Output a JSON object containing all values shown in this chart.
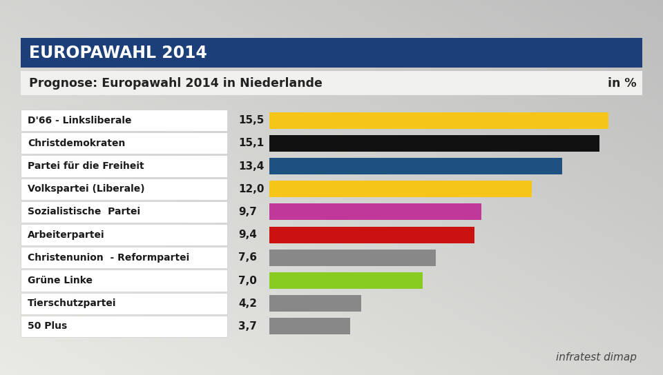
{
  "title_header": "EUROPAWAHL 2014",
  "title_header_bg": "#1c3f7a",
  "title_header_color": "#ffffff",
  "subtitle": "Prognose: Europawahl 2014 in Niederlande",
  "subtitle_right": "in %",
  "subtitle_color": "#222222",
  "source_text": "infratest dimap",
  "categories": [
    "D'66 - Linksliberale",
    "Christdemokraten",
    "Partei für die Freiheit",
    "Volkspartei (Liberale)",
    "Sozialistische  Partei",
    "Arbeiterpartei",
    "Christenunion  - Reformpartei",
    "Grüne Linke",
    "Tierschutzpartei",
    "50 Plus"
  ],
  "values": [
    15.5,
    15.1,
    13.4,
    12.0,
    9.7,
    9.4,
    7.6,
    7.0,
    4.2,
    3.7
  ],
  "value_labels": [
    "15,5",
    "15,1",
    "13,4",
    "12,0",
    "9,7",
    "9,4",
    "7,6",
    "7,0",
    "4,2",
    "3,7"
  ],
  "bar_colors": [
    "#f5c518",
    "#111111",
    "#1e5080",
    "#f5c518",
    "#c0399a",
    "#cc1111",
    "#888888",
    "#88cc22",
    "#888888",
    "#888888"
  ],
  "max_val": 17.0,
  "bg_color_tl": "#e8e8e6",
  "bg_color_br": "#b8b8b8"
}
